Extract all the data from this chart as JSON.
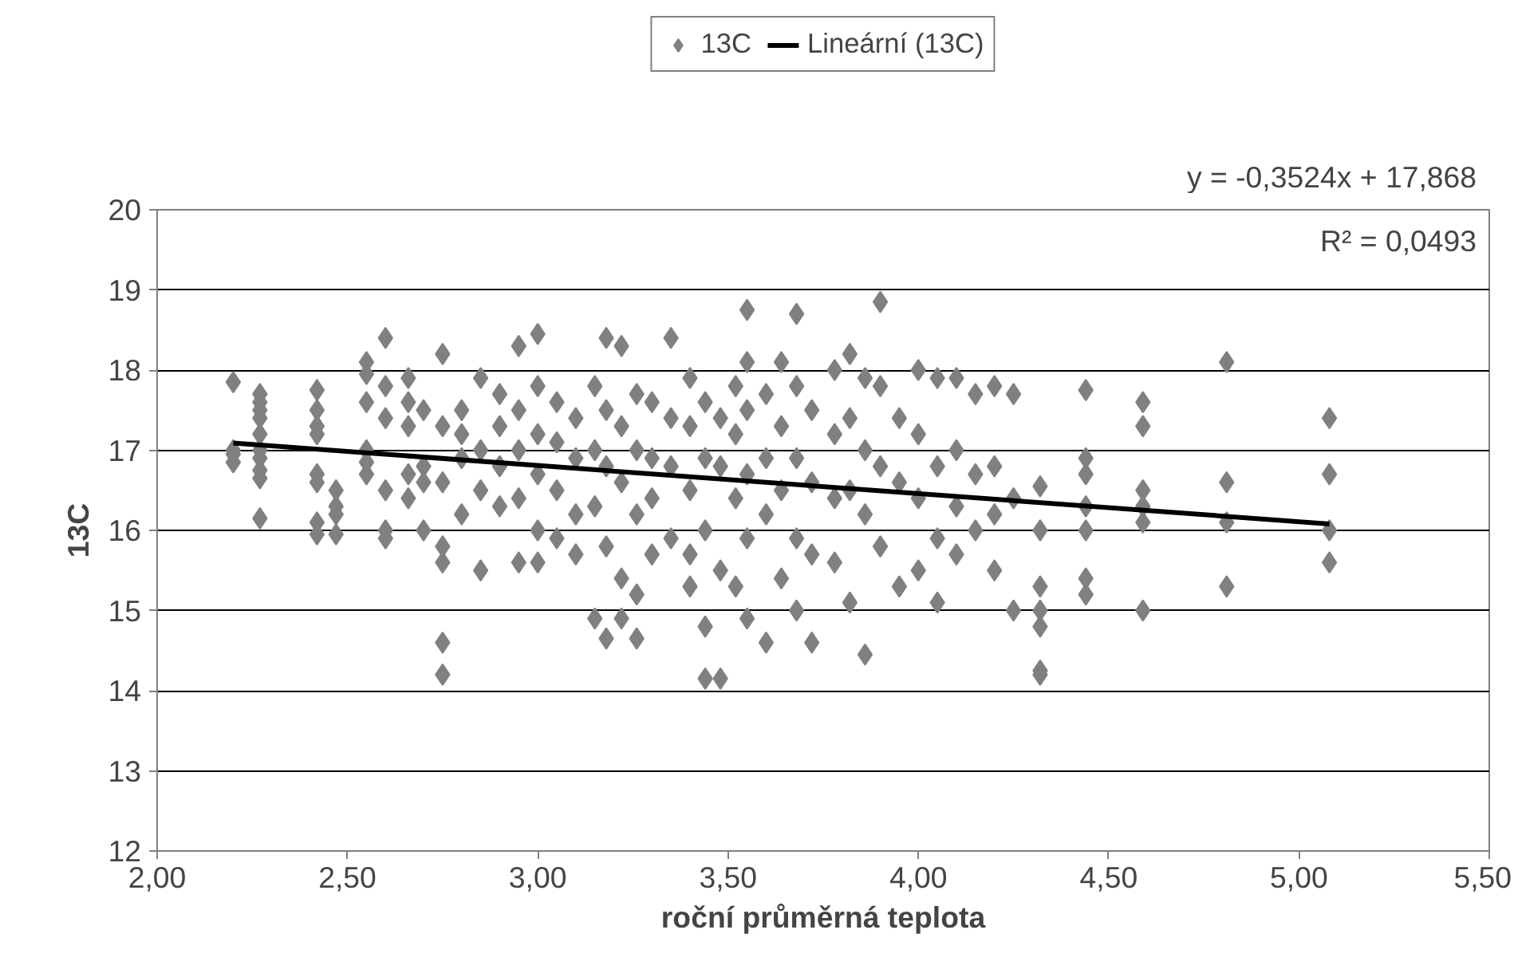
{
  "chart_data": {
    "type": "scatter",
    "xlabel": "roční průměrná teplota",
    "ylabel": "13C",
    "xlim": [
      2.0,
      5.5
    ],
    "ylim": [
      12,
      20
    ],
    "xticks": [
      {
        "value": 2.0,
        "label": "2,00"
      },
      {
        "value": 2.5,
        "label": "2,50"
      },
      {
        "value": 3.0,
        "label": "3,00"
      },
      {
        "value": 3.5,
        "label": "3,50"
      },
      {
        "value": 4.0,
        "label": "4,00"
      },
      {
        "value": 4.5,
        "label": "4,50"
      },
      {
        "value": 5.0,
        "label": "5,00"
      },
      {
        "value": 5.5,
        "label": "5,50"
      }
    ],
    "yticks": [
      12,
      13,
      14,
      15,
      16,
      17,
      18,
      19,
      20
    ],
    "grid": "y",
    "legend": "top",
    "annotations": [
      "y = -0,3524x + 17,868",
      "R² = 0,0493"
    ],
    "series": [
      {
        "name": "13C",
        "marker": "diamond",
        "color": "#808080",
        "x": [
          2.2,
          2.2,
          2.2,
          2.2,
          2.27,
          2.27,
          2.27,
          2.27,
          2.27,
          2.27,
          2.27,
          2.27,
          2.27,
          2.27,
          2.42,
          2.42,
          2.42,
          2.42,
          2.42,
          2.42,
          2.42,
          2.42,
          2.47,
          2.47,
          2.47,
          2.47,
          2.55,
          2.55,
          2.55,
          2.55,
          2.55,
          2.55,
          2.6,
          2.6,
          2.6,
          2.6,
          2.6,
          2.6,
          2.66,
          2.66,
          2.66,
          2.66,
          2.66,
          2.7,
          2.7,
          2.7,
          2.7,
          2.75,
          2.75,
          2.75,
          2.75,
          2.75,
          2.75,
          2.75,
          2.8,
          2.8,
          2.8,
          2.8,
          2.85,
          2.85,
          2.85,
          2.85,
          2.9,
          2.9,
          2.9,
          2.9,
          2.95,
          2.95,
          2.95,
          2.95,
          2.95,
          3.0,
          3.0,
          3.0,
          3.0,
          3.0,
          3.0,
          3.05,
          3.05,
          3.05,
          3.05,
          3.1,
          3.1,
          3.1,
          3.1,
          3.15,
          3.15,
          3.15,
          3.15,
          3.18,
          3.18,
          3.18,
          3.18,
          3.18,
          3.22,
          3.22,
          3.22,
          3.22,
          3.22,
          3.26,
          3.26,
          3.26,
          3.26,
          3.26,
          3.3,
          3.3,
          3.3,
          3.3,
          3.35,
          3.35,
          3.35,
          3.35,
          3.4,
          3.4,
          3.4,
          3.4,
          3.4,
          3.44,
          3.44,
          3.44,
          3.44,
          3.44,
          3.48,
          3.48,
          3.48,
          3.48,
          3.52,
          3.52,
          3.52,
          3.52,
          3.55,
          3.55,
          3.55,
          3.55,
          3.55,
          3.55,
          3.6,
          3.6,
          3.6,
          3.6,
          3.64,
          3.64,
          3.64,
          3.64,
          3.68,
          3.68,
          3.68,
          3.68,
          3.68,
          3.72,
          3.72,
          3.72,
          3.72,
          3.78,
          3.78,
          3.78,
          3.78,
          3.82,
          3.82,
          3.82,
          3.82,
          3.86,
          3.86,
          3.86,
          3.86,
          3.9,
          3.9,
          3.9,
          3.9,
          3.95,
          3.95,
          3.95,
          4.0,
          4.0,
          4.0,
          4.0,
          4.05,
          4.05,
          4.05,
          4.05,
          4.1,
          4.1,
          4.1,
          4.1,
          4.15,
          4.15,
          4.15,
          4.2,
          4.2,
          4.2,
          4.2,
          4.25,
          4.25,
          4.25,
          4.32,
          4.32,
          4.32,
          4.32,
          4.32,
          4.32,
          4.32,
          4.44,
          4.44,
          4.44,
          4.44,
          4.44,
          4.44,
          4.44,
          4.59,
          4.59,
          4.59,
          4.59,
          4.59,
          4.59,
          4.81,
          4.81,
          4.81,
          4.81,
          5.08,
          5.08,
          5.08,
          5.08
        ],
        "values": [
          17.85,
          17.0,
          16.85,
          16.95,
          17.7,
          17.6,
          17.5,
          17.4,
          17.2,
          17.0,
          16.9,
          16.75,
          16.65,
          16.15,
          17.75,
          17.5,
          17.3,
          17.2,
          16.7,
          16.6,
          16.1,
          15.95,
          16.5,
          16.3,
          16.2,
          15.95,
          18.1,
          17.95,
          17.6,
          17.0,
          16.85,
          16.7,
          18.4,
          17.8,
          17.4,
          16.5,
          15.9,
          16.0,
          17.9,
          17.6,
          17.3,
          16.7,
          16.4,
          17.5,
          16.8,
          16.0,
          16.6,
          18.2,
          17.3,
          16.6,
          15.8,
          15.6,
          14.6,
          14.2,
          17.5,
          17.2,
          16.9,
          16.2,
          17.9,
          17.0,
          16.5,
          15.5,
          17.7,
          17.3,
          16.8,
          16.3,
          18.3,
          17.5,
          17.0,
          16.4,
          15.6,
          18.45,
          17.8,
          17.2,
          16.7,
          16.0,
          15.6,
          17.6,
          17.1,
          16.5,
          15.9,
          17.4,
          16.9,
          16.2,
          15.7,
          17.8,
          17.0,
          16.3,
          14.9,
          18.4,
          17.5,
          16.8,
          15.8,
          14.65,
          18.3,
          17.3,
          16.6,
          15.4,
          14.9,
          17.7,
          17.0,
          16.2,
          15.2,
          14.65,
          17.6,
          16.9,
          16.4,
          15.7,
          18.4,
          17.4,
          16.8,
          15.9,
          17.9,
          17.3,
          16.5,
          15.7,
          15.3,
          17.6,
          16.9,
          16.0,
          14.8,
          14.15,
          17.4,
          16.8,
          15.5,
          14.15,
          17.8,
          17.2,
          16.4,
          15.3,
          18.75,
          18.1,
          17.5,
          16.7,
          15.9,
          14.9,
          17.7,
          16.9,
          16.2,
          14.6,
          18.1,
          17.3,
          16.5,
          15.4,
          18.7,
          17.8,
          16.9,
          15.9,
          15.0,
          17.5,
          16.6,
          15.7,
          14.6,
          18.0,
          17.2,
          16.4,
          15.6,
          18.2,
          17.4,
          16.5,
          15.1,
          17.9,
          17.0,
          16.2,
          14.45,
          18.85,
          17.8,
          16.8,
          15.8,
          17.4,
          16.6,
          15.3,
          18.0,
          17.2,
          16.4,
          15.5,
          17.9,
          16.8,
          15.9,
          15.1,
          17.9,
          17.0,
          16.3,
          15.7,
          17.7,
          16.7,
          16.0,
          17.8,
          16.8,
          16.2,
          15.5,
          17.7,
          16.4,
          15.0,
          16.55,
          16.0,
          15.3,
          15.0,
          14.8,
          14.25,
          14.2,
          17.75,
          16.9,
          16.7,
          16.3,
          16.0,
          15.4,
          15.2,
          17.6,
          17.3,
          16.5,
          16.3,
          16.1,
          15.0,
          18.1,
          16.6,
          16.1,
          15.3,
          17.4,
          16.7,
          16.0,
          15.6
        ]
      },
      {
        "name": "Lineární (13C)",
        "type": "line",
        "color": "#000000",
        "x": [
          2.2,
          5.08
        ],
        "values": [
          17.09,
          16.08
        ]
      }
    ]
  }
}
